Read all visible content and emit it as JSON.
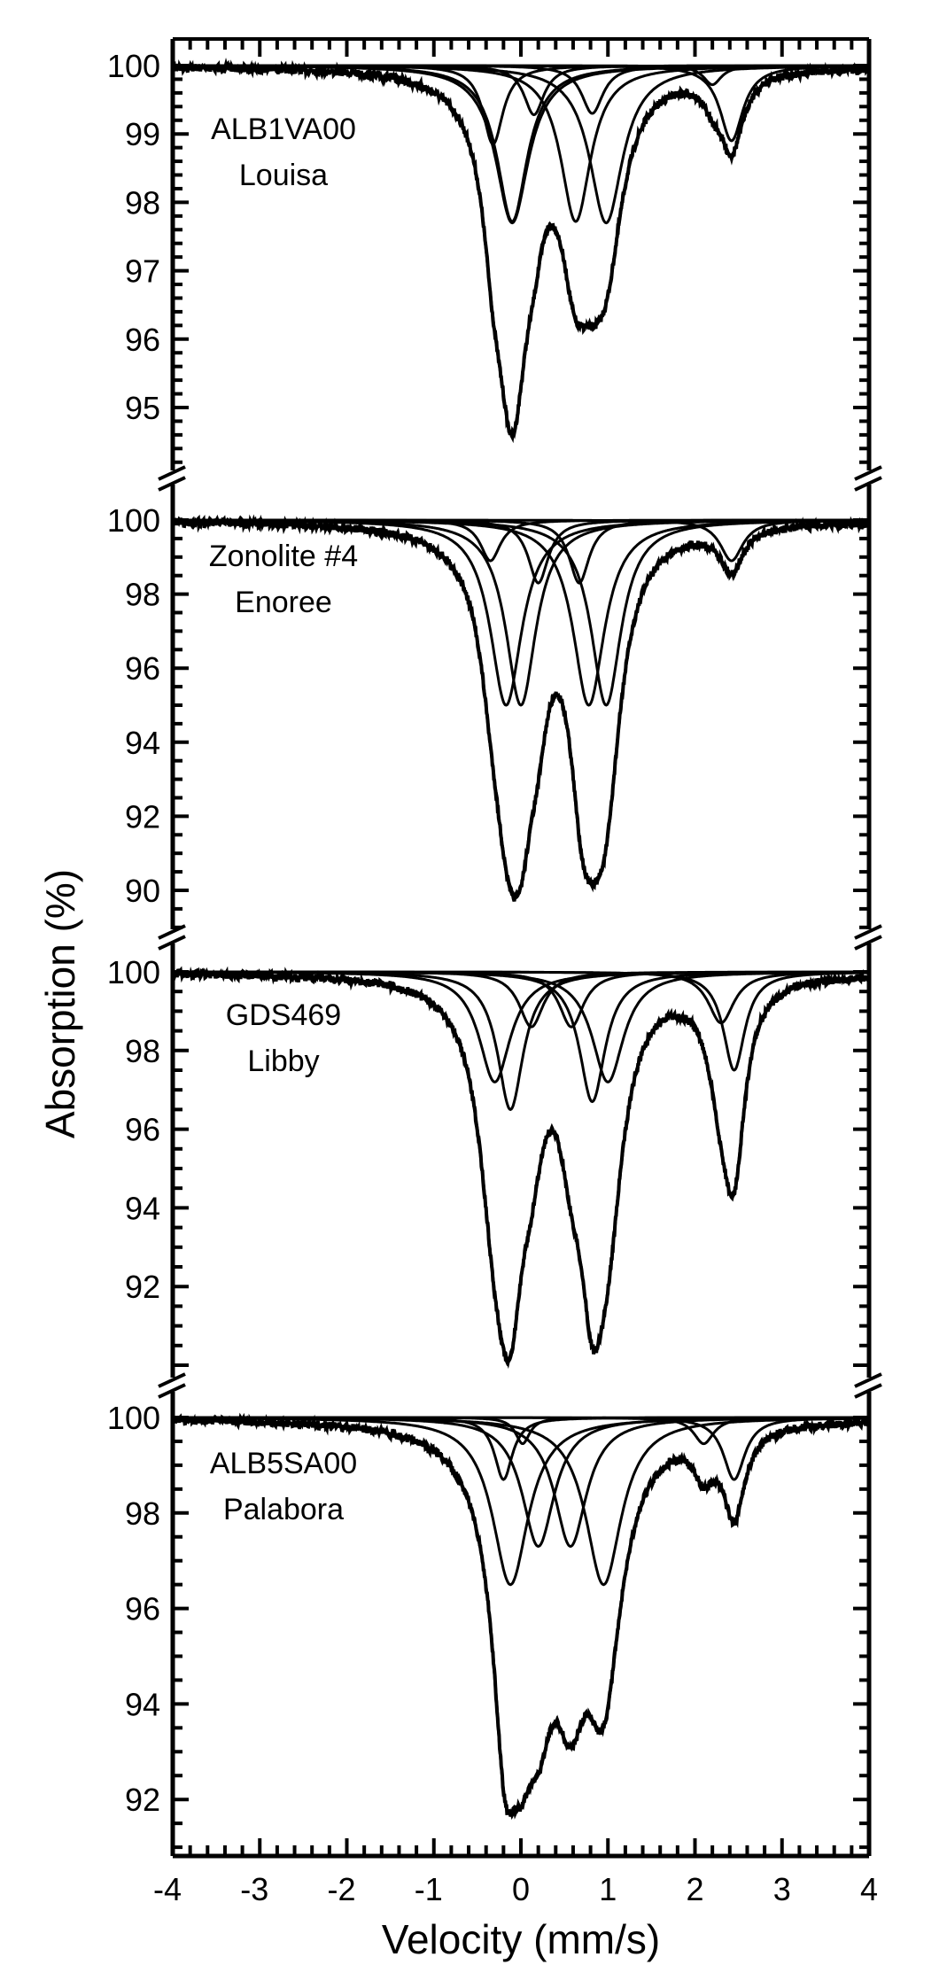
{
  "chart_data": {
    "type": "line",
    "title": "",
    "xlabel": "Velocity (mm/s)",
    "ylabel": "Absorption (%)",
    "xlim": [
      -4,
      4
    ],
    "x_ticks": [
      "-4",
      "-3",
      "-2",
      "-1",
      "0",
      "1",
      "2",
      "3",
      "4"
    ],
    "grid": false,
    "legend": "none",
    "style": {
      "line_color": "#000000",
      "background": "#ffffff"
    },
    "panels": [
      {
        "sample": "ALB1VA00",
        "locality": "Louisa",
        "ylim": [
          94.1,
          100.4
        ],
        "y_ticks": [
          "100",
          "99",
          "98",
          "97",
          "96",
          "95"
        ],
        "data_min_near_v": [
          -0.07,
          94.6
        ],
        "components": [
          {
            "center": -0.1,
            "depth": 2.28,
            "width": 0.42
          },
          {
            "center": 0.63,
            "depth": 2.28,
            "width": 0.42
          },
          {
            "center": -0.1,
            "depth": 2.3,
            "width": 0.46
          },
          {
            "center": 0.98,
            "depth": 2.3,
            "width": 0.46
          },
          {
            "center": -0.32,
            "depth": 1.15,
            "width": 0.28
          },
          {
            "center": 0.82,
            "depth": 0.7,
            "width": 0.3
          },
          {
            "center": 0.15,
            "depth": 0.72,
            "width": 0.28
          },
          {
            "center": 2.42,
            "depth": 1.1,
            "width": 0.32
          },
          {
            "center": 2.2,
            "depth": 0.28,
            "width": 0.25
          }
        ]
      },
      {
        "sample": "Zonolite #4",
        "locality": "Enoree",
        "ylim": [
          88.6,
          100.3
        ],
        "y_ticks": [
          "100",
          "98",
          "96",
          "94",
          "92",
          "90"
        ],
        "data_min_near_v": [
          -0.07,
          89.8
        ],
        "components": [
          {
            "center": -0.17,
            "depth": 5.0,
            "width": 0.44
          },
          {
            "center": 0.78,
            "depth": 5.0,
            "width": 0.44
          },
          {
            "center": 0.0,
            "depth": 5.0,
            "width": 0.42
          },
          {
            "center": 0.98,
            "depth": 5.0,
            "width": 0.42
          },
          {
            "center": -0.35,
            "depth": 1.1,
            "width": 0.28
          },
          {
            "center": 0.2,
            "depth": 1.7,
            "width": 0.28
          },
          {
            "center": 0.67,
            "depth": 1.7,
            "width": 0.28
          },
          {
            "center": 2.42,
            "depth": 1.1,
            "width": 0.32
          }
        ]
      },
      {
        "sample": "GDS469",
        "locality": "Libby",
        "ylim": [
          89.9,
          100.3
        ],
        "y_ticks": [
          "100",
          "98",
          "96",
          "94",
          "92"
        ],
        "data_min_near_v": [
          -0.15,
          90.1
        ],
        "components": [
          {
            "center": -0.12,
            "depth": 3.5,
            "width": 0.36
          },
          {
            "center": 0.82,
            "depth": 3.3,
            "width": 0.36
          },
          {
            "center": -0.3,
            "depth": 2.8,
            "width": 0.44
          },
          {
            "center": 1.0,
            "depth": 2.8,
            "width": 0.44
          },
          {
            "center": 0.12,
            "depth": 1.4,
            "width": 0.34
          },
          {
            "center": 0.58,
            "depth": 1.4,
            "width": 0.34
          },
          {
            "center": 2.45,
            "depth": 2.5,
            "width": 0.3
          },
          {
            "center": 2.3,
            "depth": 1.3,
            "width": 0.36
          }
        ]
      },
      {
        "sample": "ALB5SA00",
        "locality": "Palabora",
        "ylim": [
          91.0,
          100.4
        ],
        "y_ticks": [
          "100",
          "98",
          "96",
          "94",
          "92"
        ],
        "data_min_near_v": [
          -0.05,
          91.7
        ],
        "components": [
          {
            "center": -0.12,
            "depth": 3.5,
            "width": 0.5
          },
          {
            "center": 0.95,
            "depth": 3.5,
            "width": 0.5
          },
          {
            "center": 0.2,
            "depth": 2.7,
            "width": 0.45
          },
          {
            "center": 0.57,
            "depth": 2.7,
            "width": 0.45
          },
          {
            "center": -0.2,
            "depth": 1.3,
            "width": 0.25
          },
          {
            "center": 0.02,
            "depth": 0.55,
            "width": 0.2
          },
          {
            "center": 2.45,
            "depth": 1.3,
            "width": 0.3
          },
          {
            "center": 2.1,
            "depth": 0.55,
            "width": 0.28
          }
        ]
      }
    ]
  }
}
